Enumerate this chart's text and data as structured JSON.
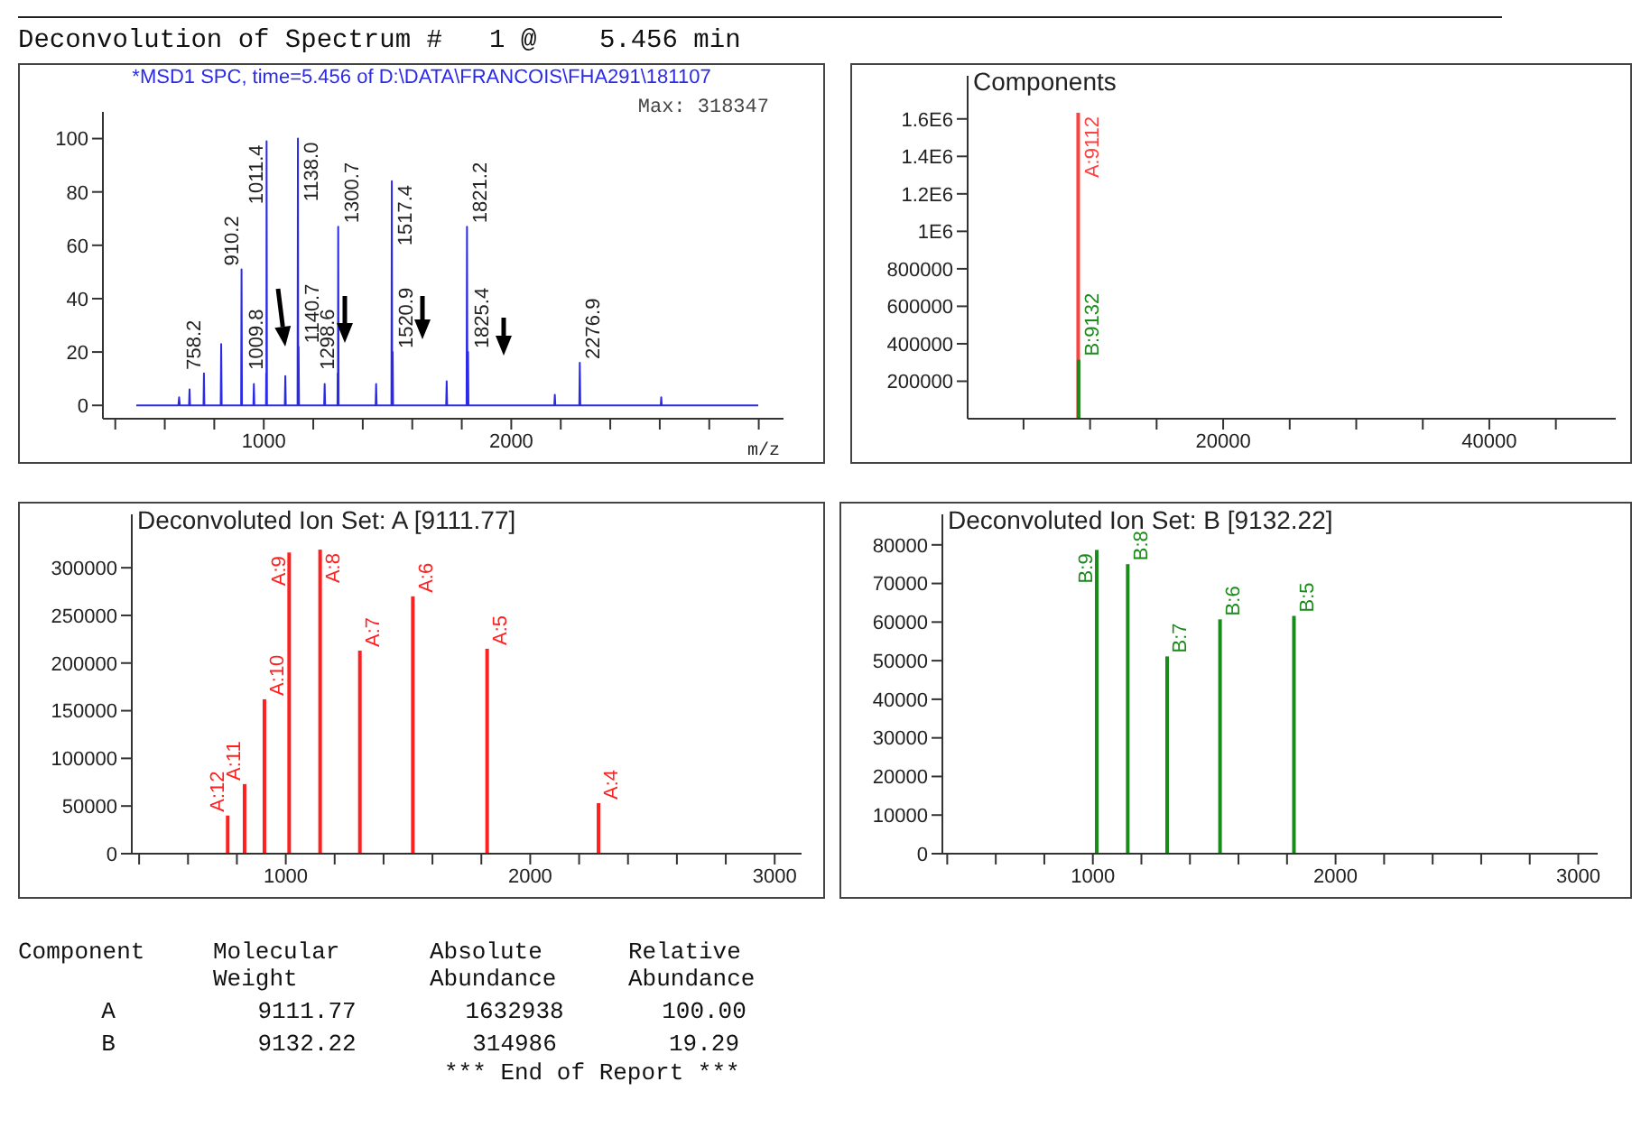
{
  "chart_data": [
    {
      "type": "line",
      "title": "Deconvolution of Spectrum #   1 @    5.456 min",
      "subtitle": "*MSD1 SPC, time=5.456 of D:\\DATA\\FRANCOIS\\FHA291\\181107",
      "xlabel": "m/z",
      "color": "#2a2ae8",
      "marker": "none",
      "x": [
        485,
        655,
        658,
        661,
        698,
        700,
        702,
        756.5,
        758.2,
        760,
        826,
        828,
        830,
        908.5,
        910.2,
        912,
        958,
        960,
        962,
        1009,
        1009.8,
        1010.6,
        1011.4,
        1013,
        1085,
        1087,
        1089,
        1136.5,
        1138,
        1139.3,
        1140.7,
        1142.5,
        1244,
        1246,
        1248,
        1297.8,
        1298.6,
        1299.6,
        1300.7,
        1302.5,
        1452,
        1454,
        1456,
        1515.8,
        1517.4,
        1519,
        1520.9,
        1522.5,
        1737,
        1739,
        1741,
        1819.5,
        1821.2,
        1823,
        1825.4,
        1827,
        2174,
        2176,
        2178,
        2275,
        2276.9,
        2279,
        2604,
        2606,
        2608,
        2998
      ],
      "values": [
        0,
        0,
        3,
        0,
        0,
        6,
        0,
        0,
        12,
        0,
        0,
        23,
        0,
        0,
        51,
        0,
        0,
        8,
        0,
        0,
        12,
        0,
        99,
        0,
        0,
        11,
        0,
        0,
        100,
        0,
        22,
        0,
        0,
        8,
        0,
        0,
        12,
        0,
        67,
        0,
        0,
        8,
        0,
        0,
        84,
        0,
        20,
        0,
        0,
        9,
        0,
        0,
        67,
        0,
        20,
        0,
        0,
        4,
        0,
        0,
        16,
        0,
        0,
        3,
        0,
        0
      ],
      "xlim": [
        350,
        3100
      ],
      "xticks": [
        {
          "value": 400,
          "label": null
        },
        {
          "value": 600,
          "label": null
        },
        {
          "value": 800,
          "label": null
        },
        1000,
        {
          "value": 1200,
          "label": null
        },
        {
          "value": 1400,
          "label": null
        },
        {
          "value": 1600,
          "label": null
        },
        {
          "value": 1800,
          "label": null
        },
        2000,
        {
          "value": 2200,
          "label": null
        },
        {
          "value": 2400,
          "label": null
        },
        {
          "value": 2600,
          "label": null
        },
        {
          "value": 2800,
          "label": null
        },
        {
          "value": 3000,
          "label": null
        }
      ],
      "ylim": [
        -5,
        110
      ],
      "yticks": [
        0,
        20,
        40,
        60,
        80,
        100
      ],
      "annotations": [
        "Max: 318347",
        {
          "text": "758.2",
          "x": 758.2,
          "y": 12
        },
        {
          "text": "910.2",
          "x": 910.2,
          "y": 51
        },
        {
          "text": "1009.8",
          "x": 1009.8,
          "y": 12
        },
        {
          "text": "1011.4",
          "x": 1011.4,
          "y": 99
        },
        {
          "text": "1138.0",
          "x": 1138,
          "y": 100
        },
        {
          "text": "1140.7",
          "x": 1140.7,
          "y": 22
        },
        {
          "text": "1298.6",
          "x": 1298.6,
          "y": 12
        },
        {
          "text": "1300.7",
          "x": 1300.7,
          "y": 67
        },
        {
          "text": "1517.4",
          "x": 1517.4,
          "y": 84
        },
        {
          "text": "1520.9",
          "x": 1520.9,
          "y": 20
        },
        {
          "text": "1821.2",
          "x": 1821.2,
          "y": 67
        },
        {
          "text": "1825.4",
          "x": 1825.4,
          "y": 20
        },
        {
          "text": "2276.9",
          "x": 2276.9,
          "y": 16
        }
      ]
    },
    {
      "type": "bar",
      "title": "Components",
      "series": [
        {
          "x": [
            9111.77
          ],
          "values": [
            1632938
          ],
          "color": "#ff4040"
        },
        {
          "x": [
            9132.22
          ],
          "values": [
            314986
          ],
          "color": "#1a8a1a"
        }
      ],
      "annotations": [
        {
          "text": "A:9112",
          "x": 9111.77,
          "y": 1632938
        },
        {
          "text": "B:9132",
          "x": 9132.22,
          "y": 314986
        }
      ],
      "xlim": [
        800,
        49500
      ],
      "xticks": [
        {
          "value": 5000,
          "label": null
        },
        {
          "value": 10000,
          "label": null
        },
        {
          "value": 15000,
          "label": null
        },
        20000,
        {
          "value": 25000,
          "label": null
        },
        {
          "value": 30000,
          "label": null
        },
        {
          "value": 35000,
          "label": null
        },
        40000,
        {
          "value": 45000,
          "label": null
        }
      ],
      "ylim": [
        0,
        1830000
      ],
      "yticks": [
        200000,
        400000,
        600000,
        800000,
        {
          "value": 1000000,
          "label": "1E6"
        },
        {
          "value": 1200000,
          "label": "1.2E6"
        },
        {
          "value": 1400000,
          "label": "1.4E6"
        },
        {
          "value": 1600000,
          "label": "1.6E6"
        }
      ]
    },
    {
      "type": "bar",
      "title": "Deconvoluted Ion Set: A [9111.77]",
      "series": [
        {
          "x": [
            760,
            829,
            910.2,
            1011.4,
            1138,
            1300.7,
            1517.4,
            1821.2,
            2276.9
          ],
          "values": [
            40000,
            73000,
            162000,
            316000,
            319000,
            213000,
            270000,
            215000,
            53000
          ],
          "color": "#ff2020"
        }
      ],
      "annotations": [
        {
          "text": "A:12",
          "x": 760,
          "y": 40000
        },
        {
          "text": "A:11",
          "x": 829,
          "y": 73000
        },
        {
          "text": "A:10",
          "x": 910.2,
          "y": 162000
        },
        {
          "text": "A:9",
          "x": 1011.4,
          "y": 316000
        },
        {
          "text": "A:8",
          "x": 1138,
          "y": 319000
        },
        {
          "text": "A:7",
          "x": 1300.7,
          "y": 213000
        },
        {
          "text": "A:6",
          "x": 1517.4,
          "y": 270000
        },
        {
          "text": "A:5",
          "x": 1821.2,
          "y": 215000
        },
        {
          "text": "A:4",
          "x": 2276.9,
          "y": 53000
        }
      ],
      "xlim": [
        370,
        3110
      ],
      "xticks": [
        {
          "value": 400,
          "label": null
        },
        {
          "value": 600,
          "label": null
        },
        {
          "value": 800,
          "label": null
        },
        1000,
        {
          "value": 1200,
          "label": null
        },
        {
          "value": 1400,
          "label": null
        },
        {
          "value": 1600,
          "label": null
        },
        {
          "value": 1800,
          "label": null
        },
        2000,
        {
          "value": 2200,
          "label": null
        },
        {
          "value": 2400,
          "label": null
        },
        {
          "value": 2600,
          "label": null
        },
        {
          "value": 2800,
          "label": null
        },
        3000
      ],
      "ylim": [
        0,
        356000
      ],
      "yticks": [
        0,
        50000,
        100000,
        150000,
        200000,
        250000,
        300000
      ]
    },
    {
      "type": "bar",
      "title": "Deconvoluted Ion Set: B [9132.22]",
      "series": [
        {
          "x": [
            1013,
            1140.7,
            1303,
            1520.9,
            1825.4
          ],
          "values": [
            78700,
            75000,
            51100,
            60700,
            61600
          ],
          "color": "#1a8a1a"
        }
      ],
      "annotations": [
        {
          "text": "B:9",
          "x": 1013,
          "y": 78700
        },
        {
          "text": "B:8",
          "x": 1140.7,
          "y": 75000
        },
        {
          "text": "B:7",
          "x": 1303,
          "y": 51100
        },
        {
          "text": "B:6",
          "x": 1520.9,
          "y": 60700
        },
        {
          "text": "B:5",
          "x": 1825.4,
          "y": 61600
        }
      ],
      "xlim": [
        380,
        3080
      ],
      "xticks": [
        {
          "value": 400,
          "label": null
        },
        {
          "value": 600,
          "label": null
        },
        {
          "value": 800,
          "label": null
        },
        1000,
        {
          "value": 1200,
          "label": null
        },
        {
          "value": 1400,
          "label": null
        },
        {
          "value": 1600,
          "label": null
        },
        {
          "value": 1800,
          "label": null
        },
        2000,
        {
          "value": 2200,
          "label": null
        },
        {
          "value": 2400,
          "label": null
        },
        {
          "value": 2600,
          "label": null
        },
        {
          "value": 2800,
          "label": null
        },
        3000
      ],
      "ylim": [
        0,
        87900
      ],
      "yticks": [
        0,
        10000,
        20000,
        30000,
        40000,
        50000,
        60000,
        70000,
        80000
      ]
    },
    {
      "type": "other",
      "annotations": [
        "Component",
        "Molecular Weight",
        "Absolute Abundance",
        "Relative Abundance",
        "A",
        "9111.77",
        "1632938",
        "100.00",
        "B",
        "9132.22",
        "314986",
        "19.29",
        "*** End of Report ***"
      ]
    }
  ]
}
